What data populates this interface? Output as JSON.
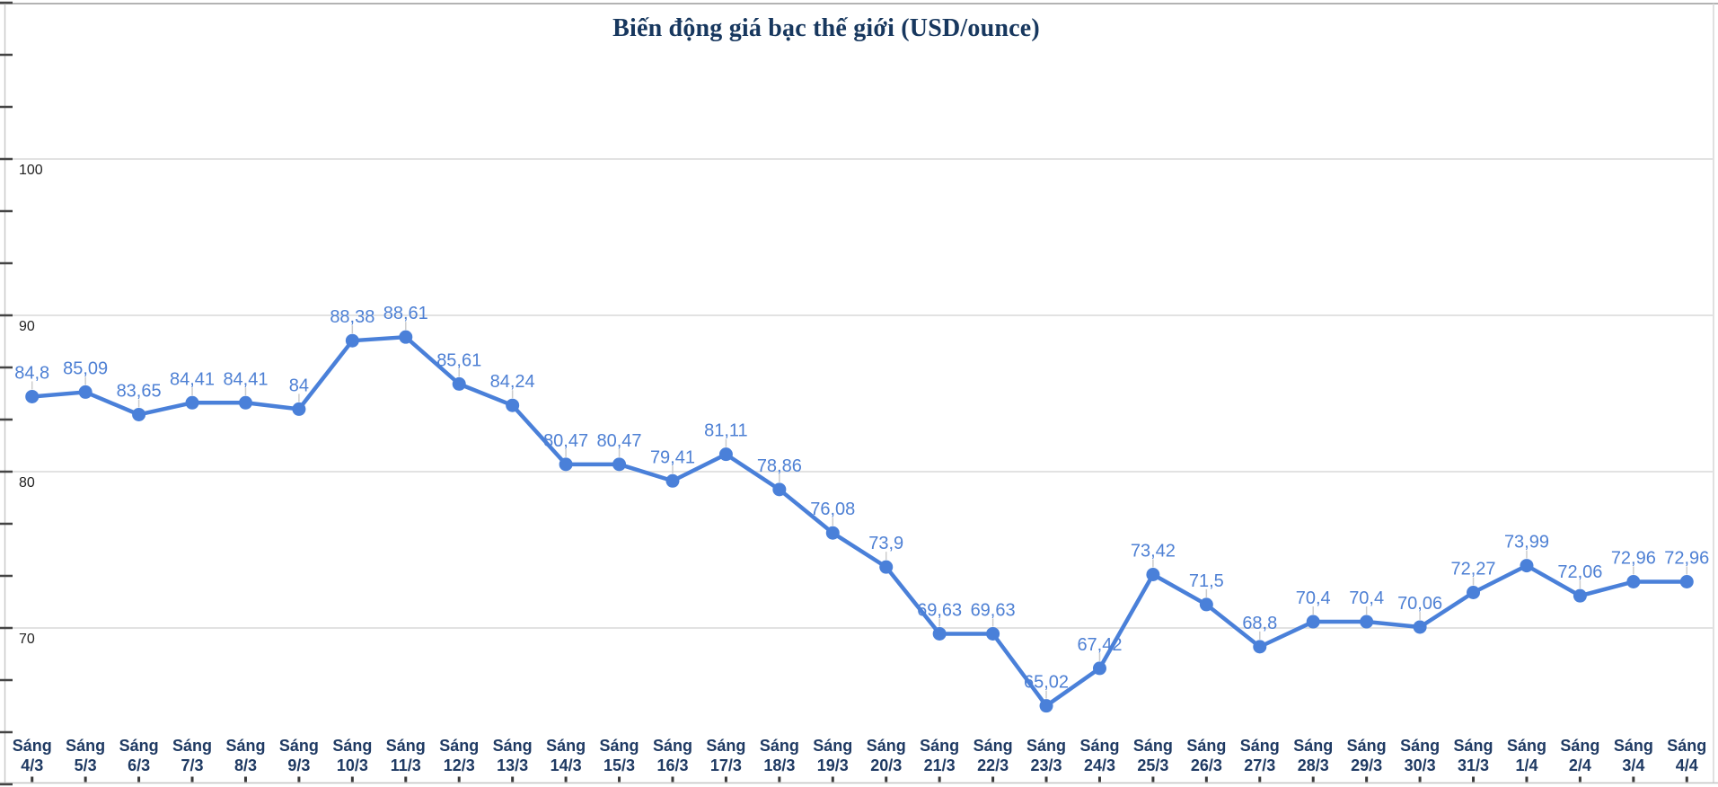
{
  "title": "Biến động giá bạc thế giới (USD/ounce)",
  "colors": {
    "line": "#4a80d9",
    "point": "#4a80d9",
    "data_label": "#4e80d4",
    "category_label": "#1f3a63",
    "title": "#17375e",
    "y_axis_label": "#222222",
    "gridline": "#e2e2e2",
    "axis_line": "#c9c9c9",
    "tick": "#444444",
    "leader_line": "#cccccc",
    "background": "#ffffff"
  },
  "chart_data": {
    "type": "line",
    "title": "Biến động giá bạc thế giới (USD/ounce)",
    "category_prefix": "Sáng",
    "categories": [
      "4/3",
      "5/3",
      "6/3",
      "7/3",
      "8/3",
      "9/3",
      "10/3",
      "11/3",
      "12/3",
      "13/3",
      "14/3",
      "15/3",
      "16/3",
      "17/3",
      "18/3",
      "19/3",
      "20/3",
      "21/3",
      "22/3",
      "23/3",
      "24/3",
      "25/3",
      "26/3",
      "27/3",
      "28/3",
      "29/3",
      "30/3",
      "31/3",
      "1/4",
      "2/4",
      "3/4",
      "4/4"
    ],
    "values": [
      84.8,
      85.09,
      83.65,
      84.41,
      84.41,
      84,
      88.38,
      88.61,
      85.61,
      84.24,
      80.47,
      80.47,
      79.41,
      81.11,
      78.86,
      76.08,
      73.9,
      69.63,
      69.63,
      65.02,
      67.42,
      73.42,
      71.5,
      68.8,
      70.4,
      70.4,
      70.06,
      72.27,
      73.99,
      72.06,
      72.96,
      72.96
    ],
    "decimal_separator": ",",
    "ylabel": "",
    "xlabel": "",
    "ylim": [
      60,
      110
    ],
    "y_axis": {
      "labeled_ticks": [
        100,
        90,
        80,
        70
      ],
      "minor_ticks_per_major": 3
    },
    "grid": true,
    "legend_position": "none",
    "data_labels_shown": true
  }
}
